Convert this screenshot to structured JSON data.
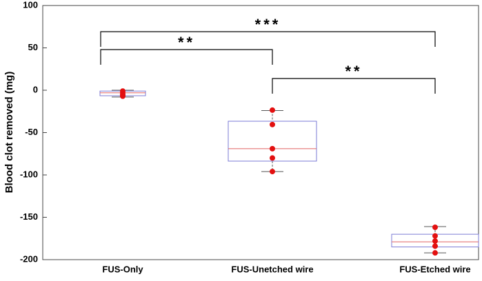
{
  "chart_data": {
    "type": "box",
    "y_label": "Blood clot removed (mg)",
    "categories": [
      "FUS-Only",
      "FUS-Unetched wire",
      "FUS-Etched wire"
    ],
    "boxes": [
      {
        "min": -8,
        "q1": -6.5,
        "median": -3,
        "q3": -1,
        "max": 0,
        "points": [
          -1,
          -3,
          -5,
          -6,
          -7
        ]
      },
      {
        "min": -96,
        "q1": -83.7,
        "median": -69,
        "q3": -36.6,
        "max": -24,
        "points": [
          -23.5,
          -40.5,
          -69,
          -80,
          -96
        ]
      },
      {
        "min": -192,
        "q1": -185,
        "median": -179,
        "q3": -170,
        "max": -161,
        "points": [
          -161.8,
          -172,
          -178,
          -184,
          -192
        ]
      }
    ],
    "box_color": "#7b7bd6",
    "median_color": "#e06060",
    "point_color": "#e31010",
    "whisker_color": "#555555",
    "ylim": [
      -200,
      100
    ],
    "yticks": [
      -200,
      -150,
      -100,
      -50,
      0,
      50,
      100
    ],
    "annotations": [
      {
        "between": [
          "FUS-Only",
          "FUS-Etched wire"
        ],
        "label": "***"
      },
      {
        "between": [
          "FUS-Only",
          "FUS-Unetched wire"
        ],
        "label": "**"
      },
      {
        "between": [
          "FUS-Unetched wire",
          "FUS-Etched wire"
        ],
        "label": "**"
      }
    ]
  }
}
